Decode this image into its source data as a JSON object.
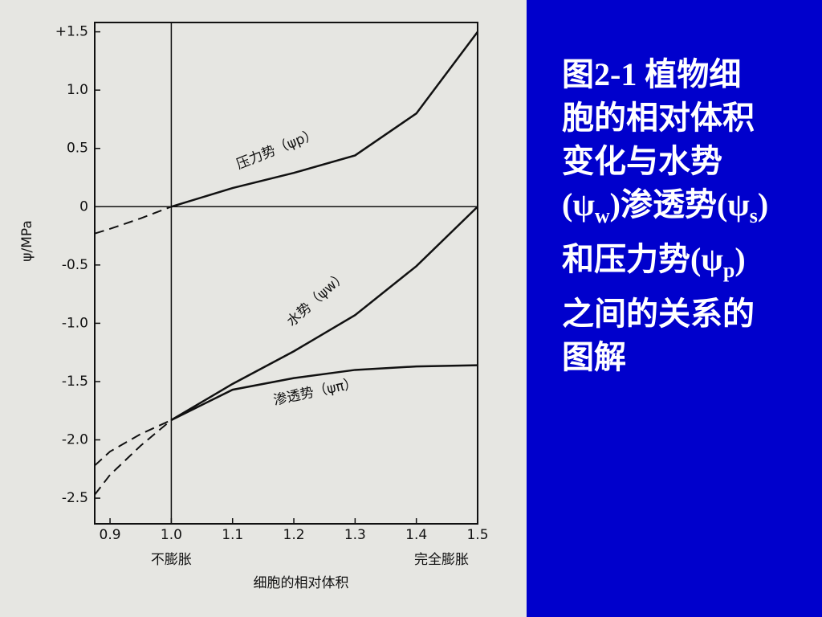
{
  "chart_data": {
    "type": "line",
    "x_label": "细胞的相对体积",
    "y_label": "ψ/MPa",
    "xlim": [
      0.875,
      1.5
    ],
    "ylim": [
      -2.72,
      1.58
    ],
    "xticks": [
      0.9,
      {
        "value": 1,
        "label": "1.0"
      },
      1.1,
      1.2,
      1.3,
      1.4,
      1.5
    ],
    "yticks": [
      {
        "value": 1.5,
        "label": "+1.5"
      },
      {
        "value": 1,
        "label": "1.0"
      },
      0.5,
      0,
      -0.5,
      {
        "value": -1,
        "label": "-1.0"
      },
      -1.5,
      {
        "value": -2,
        "label": "-2.0"
      },
      -2.5
    ],
    "annotations": [
      {
        "x": 1,
        "text": "不膨胀"
      },
      {
        "x": 1.5,
        "text": "完全膨胀"
      }
    ],
    "color": "#111111",
    "series": [
      {
        "name": "压力势（ψp）",
        "x": [
          0.875,
          0.9,
          0.95,
          1,
          1.1,
          1.2,
          1.3,
          1.4,
          1.5
        ],
        "values": [
          -0.23,
          -0.19,
          -0.1,
          0,
          0.16,
          0.29,
          0.44,
          0.8,
          1.5
        ]
      },
      {
        "name": "水势（ψw）",
        "x": [
          0.875,
          0.9,
          0.95,
          1,
          1.1,
          1.2,
          1.3,
          1.4,
          1.5
        ],
        "values": [
          -2.47,
          -2.3,
          -2.05,
          -1.83,
          -1.52,
          -1.24,
          -0.93,
          -0.51,
          0
        ]
      },
      {
        "name": "渗透势（ψπ）",
        "x": [
          0.875,
          0.9,
          0.95,
          1,
          1.1,
          1.2,
          1.3,
          1.4,
          1.5
        ],
        "values": [
          -2.22,
          -2.1,
          -1.95,
          -1.83,
          -1.57,
          -1.47,
          -1.4,
          -1.37,
          -1.36
        ]
      }
    ]
  },
  "caption": [
    [
      {
        "t": "图2-1  植物细"
      }
    ],
    [
      {
        "t": "胞的相对体积"
      }
    ],
    [
      {
        "t": "变化与水势"
      }
    ],
    [
      {
        "t": "(ψ"
      },
      {
        "sub": "w"
      },
      {
        "t": ")渗透势(ψ"
      },
      {
        "sub": "s"
      },
      {
        "t": ")"
      }
    ],
    [
      {
        "t": "和压力势(ψ"
      },
      {
        "sub": "p"
      },
      {
        "t": ")"
      }
    ],
    [
      {
        "t": "之间的关系的"
      }
    ],
    [
      {
        "t": "图解"
      }
    ]
  ]
}
